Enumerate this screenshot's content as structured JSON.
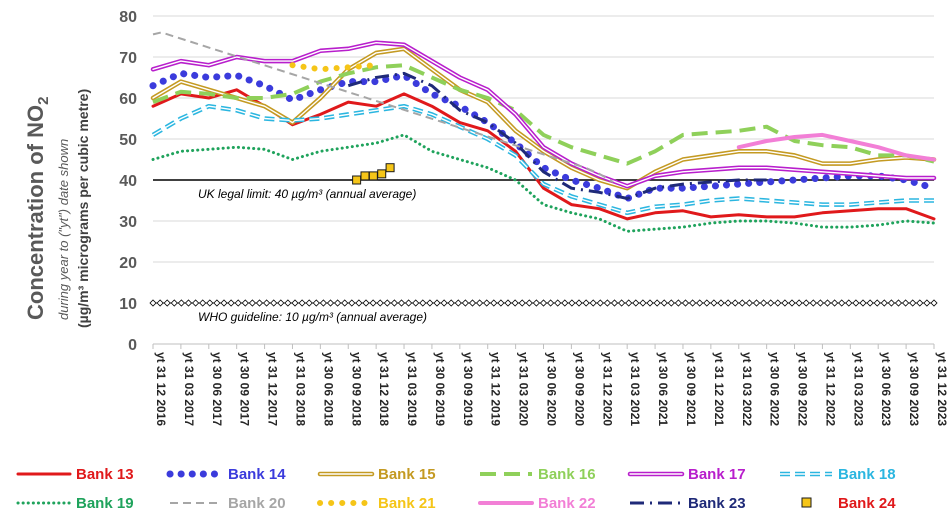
{
  "chart_data": {
    "type": "line",
    "ylabel_main": "Concentration of NO",
    "ylabel_sub": "2",
    "ylabel_line2": "during year to (\"yt\") date shown",
    "ylabel_line3": "(µg/m³ micrograms per cubic metre)",
    "ylim": [
      0,
      80
    ],
    "yticks": [
      "0",
      "10",
      "20",
      "30",
      "40",
      "50",
      "60",
      "70",
      "80"
    ],
    "xticks": [
      "yt 31 12 2016",
      "yt 31 03 2017",
      "yt 30 06 2017",
      "yt 30 09 2017",
      "yt 31 12 2017",
      "yt 31 03 2018",
      "yt 30 06 2018",
      "yt 30 09 2018",
      "yt 31 12 2018",
      "yt 31 03 2019",
      "yt 30 06 2019",
      "yt 30 09 2019",
      "yt 31 12 2019",
      "yt 31 03 2020",
      "yt 30 06 2020",
      "yt 30 09 2020",
      "yt 31 12 2020",
      "yt 31 03 2021",
      "yt 30 06 2021",
      "yt 30 09 2021",
      "yt 31 12 2021",
      "yt 31 03 2022",
      "yt 30 06 2022",
      "yt 30 09 2022",
      "yt 31 12 2022",
      "yt 31 03 2023",
      "yt 30 06 2023",
      "yt 30 09 2023",
      "yt 31 12 2023"
    ],
    "x_domain": [
      0,
      28
    ],
    "annotations": [
      {
        "text": "UK legal limit:  40 µg/m³ (annual average)",
        "y": 40
      },
      {
        "text": "WHO guideline:  10 µg/m³ (annual average)",
        "y": 10
      }
    ],
    "grid": "horizontal",
    "legend_position": "bottom",
    "series": [
      {
        "name": "Bank 13",
        "color": "#e0191b",
        "style": "solid",
        "width": 3,
        "x": [
          0,
          1,
          2,
          3,
          4,
          5,
          6,
          7,
          8,
          9,
          10,
          11,
          12,
          13,
          14,
          15,
          16,
          17,
          18,
          19,
          20,
          21,
          22,
          23,
          24,
          25,
          26,
          27,
          28
        ],
        "y": [
          58,
          61,
          60,
          62,
          58,
          53.5,
          56,
          59,
          58,
          61,
          58,
          54,
          52,
          47,
          38,
          34,
          33,
          30.5,
          32,
          32.5,
          31,
          31.5,
          31,
          31,
          32,
          32.5,
          33,
          33,
          30.5
        ]
      },
      {
        "name": "Bank 14",
        "color": "#3b3bdc",
        "style": "dots",
        "width": 5,
        "x": [
          0,
          1,
          2,
          3,
          4,
          5,
          6,
          7,
          8,
          9,
          10,
          11,
          12,
          13,
          14,
          15,
          16,
          17,
          18,
          19,
          20,
          21,
          22,
          23,
          24,
          25,
          26,
          27,
          28
        ],
        "y": [
          63,
          66,
          65,
          65.5,
          63,
          59.5,
          62,
          64,
          64,
          65.5,
          61,
          58,
          54,
          49,
          43,
          40,
          38,
          35.5,
          38,
          38,
          38.5,
          39,
          39.5,
          40,
          40.5,
          41,
          41,
          40,
          38
        ]
      },
      {
        "name": "Bank 15",
        "color": "#c49a22",
        "style": "double",
        "width": 2,
        "x": [
          0,
          1,
          2,
          3,
          4,
          5,
          6,
          7,
          8,
          9,
          10,
          11,
          12,
          13,
          14,
          15,
          16,
          17,
          18,
          19,
          20,
          21,
          22,
          23,
          24,
          25,
          26,
          27,
          28
        ],
        "y": [
          60,
          64,
          62,
          60,
          58,
          54,
          60,
          67,
          71,
          72,
          67,
          62,
          59,
          52,
          47,
          43,
          40,
          38,
          42,
          45,
          46,
          47,
          47,
          46,
          44,
          44,
          45,
          45.5,
          45
        ]
      },
      {
        "name": "Bank 16",
        "color": "#8fd05a",
        "style": "dash",
        "width": 4,
        "x": [
          0,
          1,
          2,
          3,
          4,
          5,
          6,
          7,
          8,
          9,
          10,
          11,
          12,
          13,
          14,
          15,
          16,
          17,
          18,
          19,
          20,
          21,
          22,
          23,
          24,
          25,
          26,
          27,
          28
        ],
        "y": [
          59,
          61.5,
          61,
          60,
          60,
          61,
          64,
          66,
          67.5,
          68,
          65,
          62,
          60,
          57,
          51,
          48,
          46,
          44,
          47,
          51,
          51.5,
          52,
          53,
          49.5,
          48.5,
          48,
          46,
          46,
          44.5
        ]
      },
      {
        "name": "Bank 17",
        "color": "#b81ecc",
        "style": "double",
        "width": 2,
        "x": [
          0,
          1,
          2,
          3,
          4,
          5,
          6,
          7,
          8,
          9,
          10,
          11,
          12,
          13,
          14,
          15,
          16,
          17,
          18,
          19,
          20,
          21,
          22,
          23,
          24,
          25,
          26,
          27,
          28
        ],
        "y": [
          67,
          69,
          68,
          70,
          69,
          69,
          71.5,
          72,
          73.5,
          73,
          69,
          65,
          62,
          56,
          48,
          44,
          41,
          38.5,
          41,
          42,
          42.5,
          43,
          43,
          42.5,
          42,
          41.5,
          41,
          40.5,
          40.5
        ]
      },
      {
        "name": "Bank 18",
        "color": "#2bb6e0",
        "style": "double-dash",
        "width": 2,
        "x": [
          0,
          1,
          2,
          3,
          4,
          5,
          6,
          7,
          8,
          9,
          10,
          11,
          12,
          13,
          14,
          15,
          16,
          17,
          18,
          19,
          20,
          21,
          22,
          23,
          24,
          25,
          26,
          27,
          28
        ],
        "y": [
          51,
          55,
          58,
          57,
          55,
          54.5,
          55,
          56,
          57,
          58,
          56,
          53,
          50,
          46,
          39,
          36,
          34,
          32,
          33.5,
          34,
          35,
          35.5,
          35,
          34.5,
          34,
          34,
          34.5,
          35,
          35
        ]
      },
      {
        "name": "Bank 19",
        "color": "#1fa35c",
        "style": "dots-small",
        "width": 3,
        "x": [
          0,
          1,
          2,
          3,
          4,
          5,
          6,
          7,
          8,
          9,
          10,
          11,
          12,
          13,
          14,
          15,
          16,
          17,
          18,
          19,
          20,
          21,
          22,
          23,
          24,
          25,
          26,
          27,
          28
        ],
        "y": [
          45,
          47,
          47.5,
          48,
          47.5,
          45,
          47,
          48,
          49,
          51,
          47,
          45,
          43,
          40,
          34,
          32,
          30.5,
          27.5,
          28,
          28.5,
          29.5,
          30,
          30,
          29.5,
          28.5,
          28.5,
          29,
          30,
          29.5
        ]
      },
      {
        "name": "Bank 20",
        "color": "#a6a6a6",
        "style": "dash-thin",
        "width": 2,
        "x": [
          0,
          0.3,
          15.5,
          16,
          16.5
        ],
        "y": [
          75.5,
          76,
          43,
          41.5,
          39.5
        ]
      },
      {
        "name": "Bank 21",
        "color": "#f5c518",
        "style": "dots",
        "width": 4,
        "x": [
          5,
          6,
          7,
          8
        ],
        "y": [
          68,
          67,
          67.5,
          68
        ]
      },
      {
        "name": "Bank 22",
        "color": "#f27fd6",
        "style": "solid",
        "width": 4,
        "x": [
          21,
          22,
          23,
          24,
          25,
          26,
          27,
          28
        ],
        "y": [
          48,
          49.5,
          50.5,
          51,
          49.5,
          48,
          46,
          45
        ]
      },
      {
        "name": "Bank 23",
        "color": "#1f2a78",
        "style": "dashdot",
        "width": 3,
        "x": [
          7,
          8,
          9,
          10,
          11,
          12,
          13,
          14,
          15,
          16,
          17,
          18,
          19,
          20,
          21,
          22
        ],
        "y": [
          63,
          65,
          66,
          63,
          57,
          54,
          49,
          42,
          38,
          37,
          35.5,
          38,
          39,
          39.5,
          40,
          40
        ]
      },
      {
        "name": "Bank 24",
        "color": "#e0191b",
        "style": "square",
        "marker_fill": "#f5c518",
        "marker_stroke": "#1a1a1a",
        "width": 1,
        "x": [
          7.3,
          7.6,
          7.9,
          8.2,
          8.5
        ],
        "y": [
          40,
          41,
          41,
          41.5,
          43
        ]
      }
    ]
  }
}
